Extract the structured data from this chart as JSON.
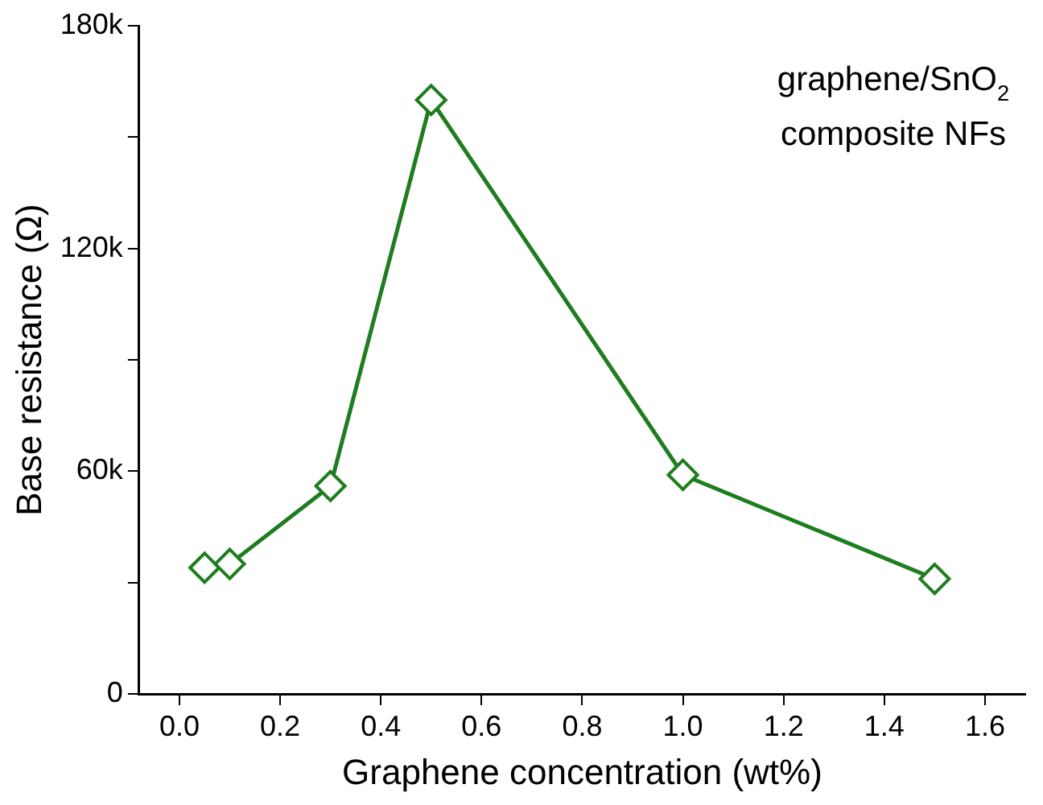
{
  "chart_data": {
    "type": "line",
    "xlabel": "Graphene concentration (wt%)",
    "ylabel": "Base resistance (Ω)",
    "annotations": [
      "graphene/SnO$_{2}$",
      "composite NFs"
    ],
    "x": [
      0.05,
      0.1,
      0.3,
      0.5,
      1.0,
      1.5
    ],
    "series": [
      {
        "color": "#1e7d1e",
        "values": [
          34000,
          35000,
          56000,
          160000,
          59000,
          31000
        ]
      }
    ],
    "xlim": [
      -0.08,
      1.68
    ],
    "xticks": [
      {
        "value": 0,
        "label": "0.0"
      },
      {
        "value": 0.2,
        "label": "0.2"
      },
      {
        "value": 0.4,
        "label": "0.4"
      },
      {
        "value": 0.6,
        "label": "0.6"
      },
      {
        "value": 0.8,
        "label": "0.8"
      },
      {
        "value": 1.0,
        "label": "1.0"
      },
      {
        "value": 1.2,
        "label": "1.2"
      },
      {
        "value": 1.4,
        "label": "1.4"
      },
      {
        "value": 1.6,
        "label": "1.6"
      }
    ],
    "ylim": [
      0,
      180000
    ],
    "yticks": [
      {
        "value": 0,
        "label": "0"
      },
      {
        "value": 30000,
        "label": null
      },
      {
        "value": 60000,
        "label": "60k"
      },
      {
        "value": 90000,
        "label": null
      },
      {
        "value": 120000,
        "label": "120k"
      },
      {
        "value": 150000,
        "label": null
      },
      {
        "value": 180000,
        "label": "180k"
      }
    ],
    "grid": false,
    "legend": false,
    "marker": "diamond",
    "line_style": "solid"
  }
}
